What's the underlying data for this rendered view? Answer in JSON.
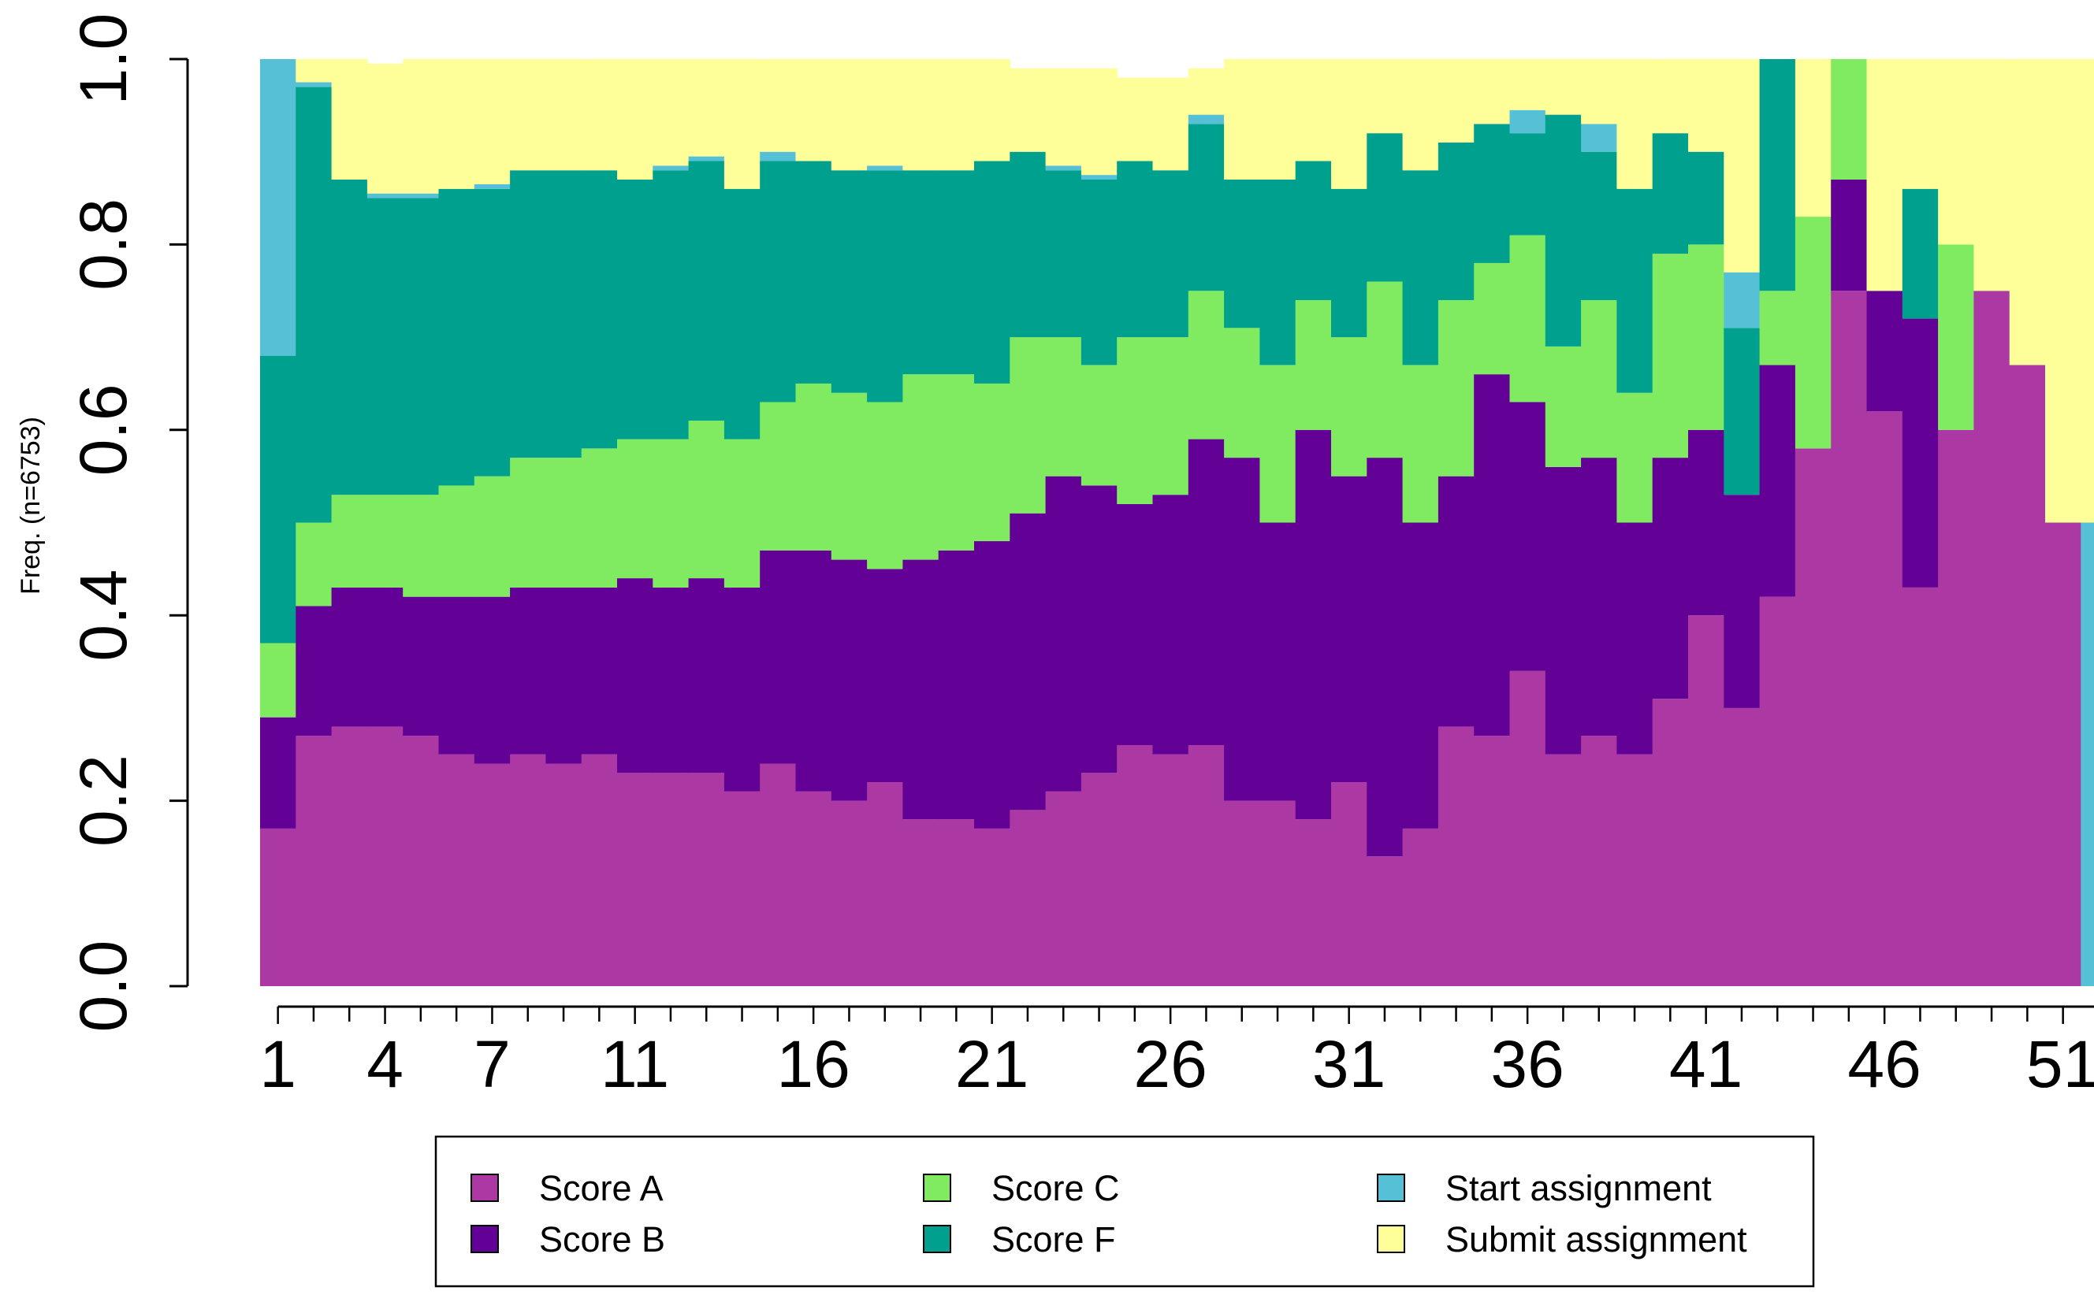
{
  "chart_data": {
    "type": "stacked-bar",
    "title": "",
    "xlabel": "",
    "ylabel": "Freq. (n=6753)",
    "ylim": [
      0,
      1
    ],
    "yticks": [
      "0.0",
      "0.2",
      "0.4",
      "0.6",
      "0.8",
      "1.0"
    ],
    "xtick_labels": [
      "1",
      "4",
      "7",
      "11",
      "16",
      "21",
      "26",
      "31",
      "36",
      "41",
      "46",
      "51"
    ],
    "categories": [
      1,
      2,
      3,
      4,
      5,
      6,
      7,
      8,
      9,
      10,
      11,
      12,
      13,
      14,
      15,
      16,
      17,
      18,
      19,
      20,
      21,
      22,
      23,
      24,
      25,
      26,
      27,
      28,
      29,
      30,
      31,
      32,
      33,
      34,
      35,
      36,
      37,
      38,
      39,
      40,
      41,
      42,
      43,
      44,
      45,
      46,
      47,
      48,
      49,
      50,
      51,
      52
    ],
    "series": [
      {
        "name": "Score A",
        "color": "#AC39A3",
        "values": [
          0.17,
          0.27,
          0.28,
          0.28,
          0.27,
          0.25,
          0.24,
          0.25,
          0.24,
          0.25,
          0.23,
          0.23,
          0.23,
          0.21,
          0.24,
          0.21,
          0.2,
          0.22,
          0.18,
          0.18,
          0.17,
          0.19,
          0.21,
          0.23,
          0.26,
          0.25,
          0.26,
          0.2,
          0.2,
          0.18,
          0.22,
          0.14,
          0.17,
          0.28,
          0.27,
          0.34,
          0.25,
          0.27,
          0.25,
          0.31,
          0.4,
          0.3,
          0.42,
          0.58,
          0.75,
          0.62,
          0.43,
          0.6,
          0.75,
          0.67,
          0.5,
          0.0
        ]
      },
      {
        "name": "Score B",
        "color": "#630096",
        "values": [
          0.12,
          0.14,
          0.15,
          0.15,
          0.15,
          0.17,
          0.18,
          0.18,
          0.19,
          0.18,
          0.21,
          0.2,
          0.21,
          0.22,
          0.23,
          0.26,
          0.26,
          0.23,
          0.28,
          0.29,
          0.31,
          0.32,
          0.34,
          0.31,
          0.26,
          0.28,
          0.33,
          0.37,
          0.3,
          0.42,
          0.33,
          0.43,
          0.33,
          0.27,
          0.39,
          0.29,
          0.31,
          0.3,
          0.25,
          0.26,
          0.2,
          0.23,
          0.25,
          0.0,
          0.12,
          0.13,
          0.29,
          0.0,
          0.0,
          0.0,
          0.0,
          0.0
        ]
      },
      {
        "name": "Score C",
        "color": "#80EB60",
        "values": [
          0.08,
          0.09,
          0.1,
          0.1,
          0.11,
          0.12,
          0.13,
          0.14,
          0.14,
          0.15,
          0.15,
          0.16,
          0.17,
          0.16,
          0.16,
          0.18,
          0.18,
          0.18,
          0.2,
          0.19,
          0.17,
          0.19,
          0.15,
          0.13,
          0.18,
          0.17,
          0.16,
          0.14,
          0.17,
          0.14,
          0.15,
          0.19,
          0.17,
          0.19,
          0.12,
          0.18,
          0.13,
          0.17,
          0.14,
          0.22,
          0.2,
          0.0,
          0.08,
          0.25,
          0.13,
          0.0,
          0.0,
          0.2,
          0.0,
          0.0,
          0.0,
          0.0
        ]
      },
      {
        "name": "Score F",
        "color": "#00A08E",
        "values": [
          0.31,
          0.47,
          0.34,
          0.32,
          0.32,
          0.32,
          0.31,
          0.31,
          0.31,
          0.3,
          0.28,
          0.29,
          0.28,
          0.27,
          0.26,
          0.24,
          0.24,
          0.25,
          0.22,
          0.22,
          0.24,
          0.2,
          0.18,
          0.2,
          0.19,
          0.18,
          0.18,
          0.16,
          0.2,
          0.15,
          0.16,
          0.16,
          0.21,
          0.17,
          0.15,
          0.11,
          0.25,
          0.16,
          0.22,
          0.13,
          0.1,
          0.18,
          0.25,
          0.0,
          0.0,
          0.0,
          0.14,
          0.0,
          0.0,
          0.0,
          0.0,
          0.0
        ]
      },
      {
        "name": "Start assignment",
        "color": "#56C0D6",
        "values": [
          0.32,
          0.005,
          0.0,
          0.005,
          0.005,
          0.0,
          0.005,
          0.0,
          0.0,
          0.0,
          0.0,
          0.005,
          0.005,
          0.0,
          0.01,
          0.0,
          0.0,
          0.005,
          0.0,
          0.0,
          0.0,
          0.0,
          0.005,
          0.005,
          0.0,
          0.0,
          0.01,
          0.0,
          0.0,
          0.0,
          0.0,
          0.0,
          0.0,
          0.0,
          0.0,
          0.025,
          0.0,
          0.03,
          0.0,
          0.0,
          0.0,
          0.06,
          0.0,
          0.0,
          0.0,
          0.0,
          0.0,
          0.0,
          0.0,
          0.0,
          0.0,
          0.5
        ]
      },
      {
        "name": "Submit assignment",
        "color": "#FFFF99",
        "values": [
          0.0,
          0.025,
          0.13,
          0.14,
          0.145,
          0.14,
          0.135,
          0.12,
          0.12,
          0.12,
          0.13,
          0.115,
          0.105,
          0.14,
          0.11,
          0.11,
          0.12,
          0.115,
          0.12,
          0.12,
          0.11,
          0.09,
          0.105,
          0.115,
          0.09,
          0.1,
          0.05,
          0.13,
          0.13,
          0.11,
          0.14,
          0.08,
          0.12,
          0.09,
          0.1,
          0.055,
          0.06,
          0.07,
          0.14,
          0.08,
          0.1,
          0.23,
          0.0,
          0.17,
          0.0,
          0.25,
          0.14,
          0.2,
          0.25,
          0.33,
          0.5,
          0.5
        ]
      }
    ],
    "legend": {
      "position": "bottom",
      "entries": [
        "Score A",
        "Score B",
        "Score C",
        "Score F",
        "Start assignment",
        "Submit assignment"
      ]
    }
  }
}
